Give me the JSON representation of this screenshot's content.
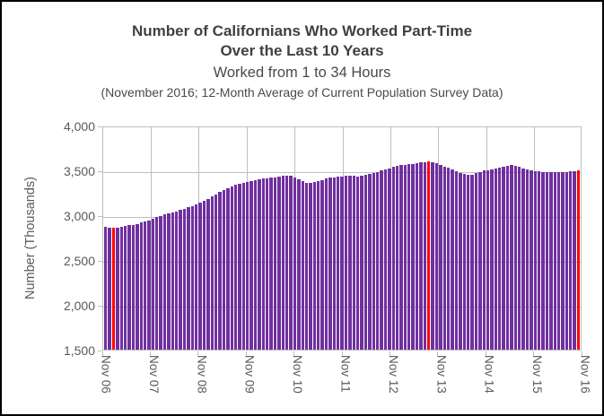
{
  "title": {
    "line1": "Number of Californians Who Worked Part-Time",
    "line2": "Over the Last 10 Years",
    "line3": "Worked from 1 to 34 Hours",
    "line4": "(November 2016; 12-Month Average of Current Population Survey Data)"
  },
  "colors": {
    "bar": "#7030A0",
    "highlight": "#FF0000",
    "gridline": "#BFBFBF",
    "axis_text": "#595959",
    "title_text": "#404040",
    "frame_border": "#000000"
  },
  "chart_data": {
    "type": "bar",
    "title": "Number of Californians Who Worked Part-Time Over the Last 10 Years",
    "subtitle": "Worked from 1 to 34 Hours",
    "note": "(November 2016; 12-Month Average of Current Population Survey Data)",
    "xlabel": "",
    "ylabel": "Number (Thousands)",
    "ylim": [
      1500,
      4000
    ],
    "grid": true,
    "frequency": "monthly",
    "x_start": "Nov 2006",
    "x_end": "Nov 2016",
    "x_tick_labels": [
      "Nov 06",
      "Nov 07",
      "Nov 08",
      "Nov 09",
      "Nov 10",
      "Nov 11",
      "Nov 12",
      "Nov 13",
      "Nov 14",
      "Nov 15",
      "Nov 16"
    ],
    "y_tick_labels": [
      "4,000",
      "3,500",
      "3,000",
      "2,500",
      "2,000",
      "1,500"
    ],
    "y_tick_values": [
      4000,
      3500,
      3000,
      2500,
      2000,
      1500
    ],
    "highlight_indices": [
      2,
      82,
      120
    ],
    "values": [
      2880,
      2874,
      2868,
      2872,
      2880,
      2888,
      2897,
      2906,
      2916,
      2927,
      2940,
      2956,
      2972,
      2988,
      3004,
      3018,
      3030,
      3042,
      3055,
      3070,
      3086,
      3102,
      3118,
      3134,
      3150,
      3172,
      3196,
      3222,
      3248,
      3272,
      3295,
      3316,
      3336,
      3354,
      3366,
      3374,
      3382,
      3396,
      3408,
      3418,
      3425,
      3430,
      3434,
      3440,
      3448,
      3455,
      3460,
      3452,
      3440,
      3420,
      3396,
      3378,
      3375,
      3382,
      3396,
      3410,
      3422,
      3432,
      3440,
      3446,
      3450,
      3453,
      3456,
      3459,
      3450,
      3456,
      3465,
      3476,
      3486,
      3497,
      3512,
      3526,
      3540,
      3552,
      3562,
      3572,
      3580,
      3586,
      3591,
      3596,
      3602,
      3610,
      3620,
      3606,
      3594,
      3578,
      3560,
      3544,
      3528,
      3510,
      3490,
      3472,
      3462,
      3470,
      3484,
      3500,
      3512,
      3520,
      3528,
      3536,
      3546,
      3558,
      3568,
      3574,
      3566,
      3554,
      3540,
      3526,
      3515,
      3508,
      3502,
      3500,
      3498,
      3496,
      3494,
      3492,
      3496,
      3500,
      3504,
      3508,
      3512
    ]
  }
}
